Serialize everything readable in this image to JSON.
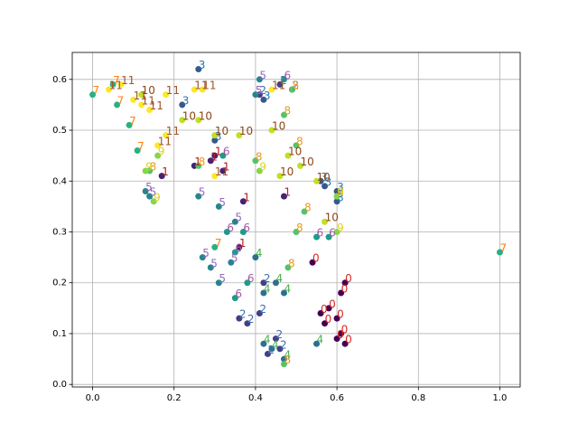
{
  "chart_data": {
    "type": "scatter",
    "grid": true,
    "xlim": [
      -0.05,
      1.05
    ],
    "ylim": [
      -0.005,
      0.653
    ],
    "xticks": [
      {
        "value": 0,
        "label": "0.0"
      },
      {
        "value": 0.2,
        "label": "0.2"
      },
      {
        "value": 0.4,
        "label": "0.4"
      },
      {
        "value": 0.6,
        "label": "0.6"
      },
      {
        "value": 0.8,
        "label": "0.8"
      },
      {
        "value": 1,
        "label": "1.0"
      }
    ],
    "yticks": [
      {
        "value": 0,
        "label": "0.0"
      },
      {
        "value": 0.1,
        "label": "0.1"
      },
      {
        "value": 0.2,
        "label": "0.2"
      },
      {
        "value": 0.3,
        "label": "0.3"
      },
      {
        "value": 0.4,
        "label": "0.4"
      },
      {
        "value": 0.5,
        "label": "0.5"
      },
      {
        "value": 0.6,
        "label": "0.6"
      }
    ],
    "series": [
      {
        "name": "0",
        "color": "#440154",
        "label_color": "#d62728",
        "x": [
          0.62,
          0.61,
          0.56,
          0.57,
          0.6,
          0.61,
          0.62,
          0.58,
          0.6,
          0.54
        ],
        "values": [
          0.2,
          0.18,
          0.14,
          0.12,
          0.13,
          0.1,
          0.08,
          0.15,
          0.09,
          0.24
        ]
      },
      {
        "name": "1",
        "color": "#482173",
        "label_color": "#b22222",
        "x": [
          0.3,
          0.32,
          0.25,
          0.37,
          0.36,
          0.47,
          0.17,
          0.29
        ],
        "values": [
          0.45,
          0.42,
          0.43,
          0.36,
          0.27,
          0.37,
          0.41,
          0.44
        ]
      },
      {
        "name": "2",
        "color": "#433e85",
        "label_color": "#3a6fb0",
        "x": [
          0.38,
          0.41,
          0.45,
          0.43,
          0.46,
          0.42,
          0.36,
          0.46,
          0.49,
          0.41
        ],
        "values": [
          0.12,
          0.14,
          0.09,
          0.06,
          0.07,
          0.2,
          0.13,
          0.59,
          0.58,
          0.57
        ]
      },
      {
        "name": "3",
        "color": "#38588c",
        "label_color": "#1f77b4",
        "x": [
          0.26,
          0.57,
          0.6,
          0.6,
          0.22,
          0.3,
          0.56,
          0.42
        ],
        "values": [
          0.62,
          0.39,
          0.38,
          0.36,
          0.55,
          0.48,
          0.4,
          0.56
        ]
      },
      {
        "name": "4",
        "color": "#2d708e",
        "label_color": "#4caf50",
        "x": [
          0.42,
          0.47,
          0.44,
          0.42,
          0.47,
          0.55,
          0.4,
          0.45
        ],
        "values": [
          0.18,
          0.18,
          0.07,
          0.08,
          0.05,
          0.08,
          0.25,
          0.2
        ]
      },
      {
        "name": "5",
        "color": "#25858e",
        "label_color": "#9467bd",
        "x": [
          0.27,
          0.29,
          0.31,
          0.34,
          0.31,
          0.35,
          0.13,
          0.14,
          0.41,
          0.4,
          0.26
        ],
        "values": [
          0.25,
          0.23,
          0.2,
          0.24,
          0.35,
          0.32,
          0.38,
          0.37,
          0.6,
          0.57,
          0.37
        ]
      },
      {
        "name": "6",
        "color": "#1e9b8a",
        "label_color": "#a05aa0",
        "x": [
          0.33,
          0.37,
          0.35,
          0.38,
          0.55,
          0.58,
          0.35,
          0.47,
          0.32
        ],
        "values": [
          0.3,
          0.3,
          0.17,
          0.2,
          0.29,
          0.29,
          0.26,
          0.6,
          0.45
        ]
      },
      {
        "name": "7",
        "color": "#2ab07f",
        "label_color": "#ff7f0e",
        "x": [
          1.0,
          0.11,
          0.05,
          0.0,
          0.06,
          0.3,
          0.09
        ],
        "values": [
          0.26,
          0.46,
          0.59,
          0.57,
          0.55,
          0.27,
          0.51
        ]
      },
      {
        "name": "8",
        "color": "#52c569",
        "label_color": "#e89a20",
        "x": [
          0.47,
          0.49,
          0.5,
          0.48,
          0.5,
          0.52,
          0.47,
          0.26,
          0.14,
          0.4,
          0.6
        ],
        "values": [
          0.53,
          0.58,
          0.47,
          0.23,
          0.3,
          0.34,
          0.04,
          0.43,
          0.42,
          0.44,
          0.37
        ]
      },
      {
        "name": "9",
        "color": "#86d549",
        "label_color": "#e0d020",
        "x": [
          0.15,
          0.13,
          0.16,
          0.6,
          0.6,
          0.41
        ],
        "values": [
          0.36,
          0.42,
          0.45,
          0.3,
          0.37,
          0.42
        ]
      },
      {
        "name": "10",
        "color": "#c2df23",
        "label_color": "#8b4513",
        "x": [
          0.22,
          0.26,
          0.3,
          0.36,
          0.44,
          0.48,
          0.51,
          0.55,
          0.57,
          0.46,
          0.12
        ],
        "values": [
          0.52,
          0.52,
          0.49,
          0.49,
          0.5,
          0.45,
          0.43,
          0.4,
          0.32,
          0.41,
          0.57
        ]
      },
      {
        "name": "11",
        "color": "#fde725",
        "label_color": "#a0522d",
        "x": [
          0.07,
          0.04,
          0.1,
          0.12,
          0.14,
          0.18,
          0.27,
          0.25,
          0.18,
          0.44,
          0.3,
          0.16
        ],
        "values": [
          0.59,
          0.58,
          0.56,
          0.55,
          0.54,
          0.57,
          0.58,
          0.58,
          0.49,
          0.58,
          0.41,
          0.47
        ]
      }
    ]
  }
}
